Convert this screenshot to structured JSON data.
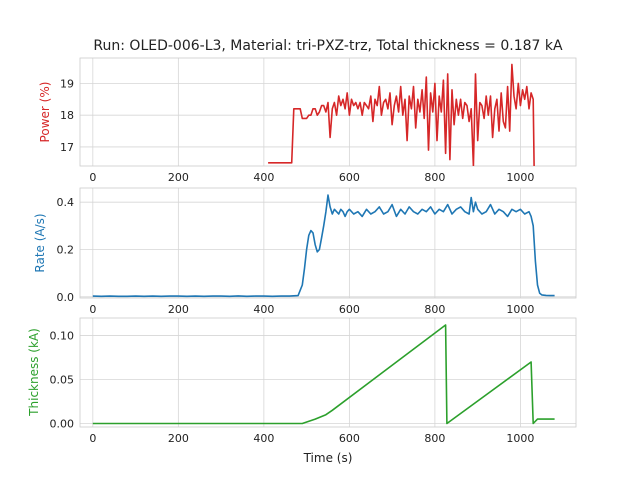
{
  "title": "Run: OLED-006-L3, Material: tri-PXZ-trz, Total thickness = 0.187 kA",
  "chart_data": [
    {
      "type": "line",
      "name": "power",
      "ylabel": "Power (%)",
      "color": "#d62728",
      "xlim": [
        -30,
        1130
      ],
      "ylim": [
        16.4,
        19.8
      ],
      "xticks": [
        0,
        200,
        400,
        600,
        800,
        1000
      ],
      "yticks": [
        17,
        18,
        19
      ],
      "ytick_labels": [
        "17",
        "18",
        "19"
      ],
      "grid": true,
      "x": [
        410,
        465,
        470,
        485,
        490,
        500,
        505,
        510,
        515,
        520,
        525,
        530,
        535,
        540,
        545,
        550,
        555,
        560,
        565,
        570,
        575,
        580,
        585,
        590,
        595,
        600,
        605,
        610,
        615,
        620,
        625,
        630,
        635,
        640,
        645,
        650,
        655,
        660,
        665,
        670,
        675,
        680,
        685,
        690,
        695,
        700,
        705,
        710,
        715,
        720,
        725,
        730,
        735,
        740,
        745,
        750,
        755,
        760,
        765,
        770,
        775,
        780,
        785,
        790,
        795,
        800,
        805,
        810,
        815,
        820,
        825,
        830,
        835,
        840,
        845,
        850,
        855,
        860,
        865,
        870,
        875,
        880,
        885,
        890,
        895,
        900,
        905,
        910,
        915,
        920,
        925,
        930,
        935,
        940,
        945,
        950,
        955,
        960,
        965,
        970,
        975,
        980,
        985,
        990,
        995,
        1000,
        1005,
        1010,
        1015,
        1020,
        1025,
        1030,
        1032
      ],
      "y": [
        16.5,
        16.5,
        18.2,
        18.2,
        17.9,
        17.9,
        18.0,
        18.0,
        18.2,
        18.2,
        18.0,
        18.1,
        18.3,
        18.3,
        18.1,
        18.4,
        17.3,
        18.2,
        18.4,
        18.0,
        18.6,
        18.3,
        18.5,
        18.2,
        18.7,
        18.0,
        18.5,
        18.3,
        18.4,
        18.2,
        18.4,
        18.0,
        18.4,
        18.3,
        18.2,
        18.6,
        17.8,
        18.5,
        18.3,
        18.9,
        18.0,
        18.4,
        18.5,
        18.2,
        18.7,
        17.7,
        18.3,
        18.6,
        18.1,
        18.9,
        18.0,
        18.5,
        17.2,
        18.6,
        18.2,
        18.9,
        17.6,
        18.5,
        18.1,
        18.8,
        17.9,
        19.2,
        16.9,
        18.7,
        18.1,
        19.0,
        17.2,
        18.6,
        18.1,
        19.1,
        16.8,
        19.3,
        16.6,
        18.8,
        17.7,
        18.5,
        18.0,
        18.5,
        17.9,
        18.4,
        18.3,
        17.8,
        18.2,
        16.4,
        19.3,
        17.2,
        18.4,
        18.3,
        17.9,
        18.6,
        18.0,
        18.6,
        17.3,
        18.2,
        18.5,
        17.5,
        18.7,
        17.8,
        17.6,
        18.9,
        17.5,
        19.6,
        18.6,
        18.2,
        19.0,
        18.3,
        18.8,
        18.5,
        18.9,
        18.2,
        18.7,
        18.5,
        16.4
      ]
    },
    {
      "type": "line",
      "name": "rate",
      "ylabel": "Rate (A/s)",
      "color": "#1f77b4",
      "xlim": [
        -30,
        1130
      ],
      "ylim": [
        -0.005,
        0.46
      ],
      "xticks": [
        0,
        200,
        400,
        600,
        800,
        1000
      ],
      "yticks": [
        0.0,
        0.2,
        0.4
      ],
      "ytick_labels": [
        "0.0",
        "0.2",
        "0.4"
      ],
      "grid": true,
      "x": [
        0,
        20,
        40,
        60,
        80,
        100,
        120,
        140,
        160,
        180,
        200,
        220,
        240,
        260,
        280,
        300,
        320,
        340,
        360,
        380,
        400,
        420,
        440,
        460,
        480,
        490,
        495,
        500,
        505,
        510,
        515,
        520,
        525,
        530,
        535,
        540,
        545,
        550,
        555,
        560,
        565,
        570,
        575,
        580,
        585,
        590,
        595,
        600,
        610,
        620,
        630,
        640,
        650,
        660,
        670,
        680,
        690,
        700,
        710,
        720,
        730,
        740,
        750,
        760,
        770,
        780,
        790,
        800,
        810,
        820,
        830,
        840,
        850,
        860,
        870,
        880,
        885,
        890,
        895,
        900,
        910,
        920,
        930,
        940,
        950,
        960,
        970,
        980,
        990,
        1000,
        1010,
        1020,
        1025,
        1030,
        1035,
        1040,
        1045,
        1050,
        1060,
        1070,
        1080
      ],
      "y": [
        0.003,
        0.002,
        0.003,
        0.002,
        0.002,
        0.003,
        0.002,
        0.003,
        0.002,
        0.003,
        0.003,
        0.002,
        0.003,
        0.002,
        0.003,
        0.003,
        0.002,
        0.004,
        0.002,
        0.003,
        0.003,
        0.002,
        0.003,
        0.003,
        0.005,
        0.05,
        0.12,
        0.2,
        0.26,
        0.28,
        0.27,
        0.22,
        0.19,
        0.2,
        0.25,
        0.3,
        0.36,
        0.43,
        0.38,
        0.35,
        0.37,
        0.36,
        0.35,
        0.37,
        0.36,
        0.34,
        0.36,
        0.37,
        0.35,
        0.36,
        0.34,
        0.37,
        0.35,
        0.36,
        0.38,
        0.35,
        0.36,
        0.39,
        0.34,
        0.37,
        0.35,
        0.38,
        0.36,
        0.35,
        0.37,
        0.36,
        0.38,
        0.35,
        0.37,
        0.36,
        0.39,
        0.35,
        0.37,
        0.38,
        0.36,
        0.35,
        0.42,
        0.36,
        0.4,
        0.37,
        0.35,
        0.36,
        0.39,
        0.35,
        0.37,
        0.36,
        0.34,
        0.37,
        0.36,
        0.37,
        0.35,
        0.36,
        0.34,
        0.3,
        0.15,
        0.05,
        0.015,
        0.008,
        0.006,
        0.005,
        0.005
      ]
    },
    {
      "type": "line",
      "name": "thickness",
      "ylabel": "Thickness (kA)",
      "xlabel": "Time (s)",
      "color": "#2ca02c",
      "xlim": [
        -30,
        1130
      ],
      "ylim": [
        -0.004,
        0.12
      ],
      "xticks": [
        0,
        200,
        400,
        600,
        800,
        1000
      ],
      "yticks": [
        0.0,
        0.05,
        0.1
      ],
      "ytick_labels": [
        "0.00",
        "0.05",
        "0.10"
      ],
      "grid": true,
      "x": [
        0,
        490,
        520,
        545,
        560,
        825,
        828,
        1025,
        1030,
        1040,
        1080
      ],
      "y": [
        0.0,
        0.0,
        0.005,
        0.01,
        0.015,
        0.112,
        0.0,
        0.07,
        0.0,
        0.005,
        0.005
      ]
    }
  ]
}
